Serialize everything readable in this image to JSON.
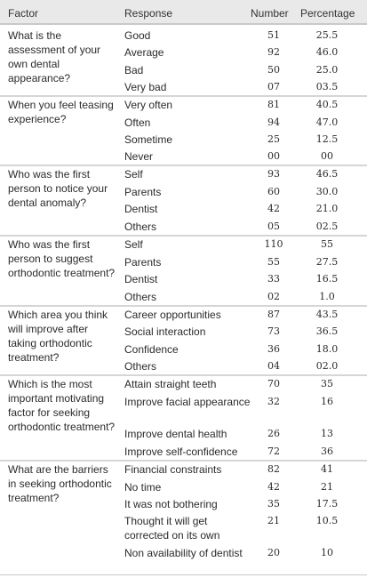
{
  "headers": {
    "factor": "Factor",
    "response": "Response",
    "number": "Number",
    "percentage": "Percentage"
  },
  "groups": [
    {
      "factor": "What is the assessment of your own dental appearance?",
      "rows": [
        {
          "response": "Good",
          "number": "51",
          "percentage": "25.5"
        },
        {
          "response": "Average",
          "number": "92",
          "percentage": "46.0"
        },
        {
          "response": "Bad",
          "number": "50",
          "percentage": "25.0"
        },
        {
          "response": "Very bad",
          "number": "07",
          "percentage": "03.5"
        }
      ]
    },
    {
      "factor": "When you feel teasing experience?",
      "rows": [
        {
          "response": "Very often",
          "number": "81",
          "percentage": "40.5"
        },
        {
          "response": "Often",
          "number": "94",
          "percentage": "47.0"
        },
        {
          "response": "Sometime",
          "number": "25",
          "percentage": "12.5"
        },
        {
          "response": "Never",
          "number": "00",
          "percentage": "00"
        }
      ]
    },
    {
      "factor": "Who was the first person to notice your dental anomaly?",
      "rows": [
        {
          "response": "Self",
          "number": "93",
          "percentage": "46.5"
        },
        {
          "response": "Parents",
          "number": "60",
          "percentage": "30.0"
        },
        {
          "response": "Dentist",
          "number": "42",
          "percentage": "21.0"
        },
        {
          "response": "Others",
          "number": "05",
          "percentage": "02.5"
        }
      ]
    },
    {
      "factor": "Who was the first person to suggest orthodontic treatment?",
      "rows": [
        {
          "response": "Self",
          "number": "110",
          "percentage": "55"
        },
        {
          "response": "Parents",
          "number": "55",
          "percentage": "27.5"
        },
        {
          "response": "Dentist",
          "number": "33",
          "percentage": "16.5"
        },
        {
          "response": "Others",
          "number": "02",
          "percentage": "1.0"
        }
      ]
    },
    {
      "factor": "Which area you think will improve after taking orthodontic treatment?",
      "rows": [
        {
          "response": "Career opportunities",
          "number": "87",
          "percentage": "43.5"
        },
        {
          "response": "Social interaction",
          "number": "73",
          "percentage": "36.5"
        },
        {
          "response": "Confidence",
          "number": "36",
          "percentage": "18.0"
        },
        {
          "response": "Others",
          "number": "04",
          "percentage": "02.0"
        }
      ]
    },
    {
      "factor": "Which is the most important motivating factor for seeking orthodontic treatment?",
      "rows": [
        {
          "response": "Attain straight teeth",
          "number": "70",
          "percentage": "35"
        },
        {
          "response": "Improve facial appearance",
          "number": "32",
          "percentage": "16"
        },
        {
          "response": "Improve dental health",
          "number": "26",
          "percentage": "13"
        },
        {
          "response": "Improve self-confidence",
          "number": "72",
          "percentage": "36"
        }
      ]
    },
    {
      "factor": "What are the barriers in seeking orthodontic treatment?",
      "rows": [
        {
          "response": "Financial constraints",
          "number": "82",
          "percentage": "41"
        },
        {
          "response": "No time",
          "number": "42",
          "percentage": "21"
        },
        {
          "response": "It was not bothering",
          "number": "35",
          "percentage": "17.5"
        },
        {
          "response": "Thought it will get corrected on its own",
          "number": "21",
          "percentage": "10.5"
        },
        {
          "response": "Non availability of dentist",
          "number": "20",
          "percentage": "10"
        }
      ]
    }
  ]
}
